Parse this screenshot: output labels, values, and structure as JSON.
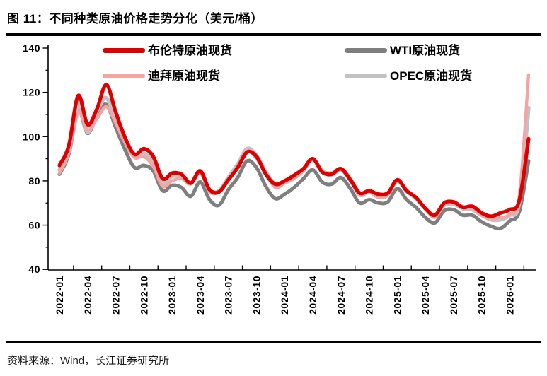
{
  "header": {
    "title": "图 11：不同种类原油价格走势分化（美元/桶）"
  },
  "footer": {
    "source": "资料来源：Wind，长江证券研究所"
  },
  "chart_data": {
    "type": "line",
    "title": "不同种类原油价格走势分化（美元/桶）",
    "xlabel": "",
    "ylabel": "",
    "unit": "美元/桶",
    "ylim": [
      40,
      140
    ],
    "y_ticks": [
      40,
      60,
      80,
      100,
      120,
      140
    ],
    "y_minor_tick_step": 10,
    "grid": "off",
    "legend_position": "top-inside",
    "x_frequency": "monthly",
    "x_start": "2022-01",
    "x_end": "2026-03",
    "x_tick_labels": [
      "2022-01",
      "2022-04",
      "2022-07",
      "2022-10",
      "2023-01",
      "2023-04",
      "2023-07",
      "2023-10",
      "2024-01",
      "2024-04",
      "2024-07",
      "2024-10",
      "2025-01",
      "2025-04",
      "2025-07",
      "2025-10",
      "2026-01"
    ],
    "series": [
      {
        "name": "布伦特原油现货",
        "color": "#DE0000",
        "values": [
          87,
          96,
          118.5,
          105.5,
          112.5,
          123.5,
          111,
          99.5,
          92,
          94.5,
          91,
          81,
          83.5,
          83,
          79,
          84.5,
          76,
          75,
          80.5,
          86,
          93,
          91,
          83,
          78.5,
          80,
          82.5,
          85.5,
          90,
          84,
          83,
          85.5,
          80.5,
          74.5,
          75.5,
          74,
          74.5,
          80.5,
          75.5,
          72.5,
          67.5,
          64.5,
          70,
          70.5,
          68,
          68.5,
          65.5,
          64,
          65.5,
          67,
          71,
          99
        ]
      },
      {
        "name": "WTI原油现货",
        "color": "#7F7F7F",
        "values": [
          83,
          92,
          112,
          101.5,
          109.5,
          114.5,
          104,
          94,
          86,
          87,
          84.5,
          75.5,
          78,
          77,
          73,
          79.5,
          71.5,
          69,
          76,
          81.5,
          89,
          86,
          77.5,
          72,
          74,
          77,
          81,
          85,
          79.5,
          78.5,
          81.5,
          76.5,
          70,
          71.5,
          70,
          70.5,
          76.5,
          71.5,
          68,
          63.5,
          61,
          66.5,
          67,
          64.5,
          64.5,
          61.5,
          59.5,
          58.5,
          62,
          66,
          89
        ]
      },
      {
        "name": "迪拜原油现货",
        "color": "#F5A3A3",
        "values": [
          83.5,
          92.5,
          111,
          103,
          108,
          113.5,
          106,
          97,
          90.5,
          91,
          86.5,
          77.5,
          80,
          81,
          78.5,
          83.5,
          75,
          75,
          80.5,
          86.5,
          93.5,
          90,
          83.5,
          77,
          79,
          81,
          84.5,
          89.5,
          84,
          82.5,
          85,
          80,
          73.5,
          75,
          72.5,
          73.5,
          80.5,
          76,
          72.5,
          67.5,
          63.5,
          69.5,
          70,
          68.5,
          67.5,
          64.5,
          63,
          63.5,
          65,
          73,
          128
        ]
      },
      {
        "name": "OPEC原油现货",
        "color": "#C2C2C2",
        "values": [
          85,
          94,
          114.5,
          102,
          111.5,
          117.5,
          107.5,
          98.5,
          91,
          92.5,
          88.5,
          79,
          82,
          82,
          79,
          84.5,
          76,
          75.5,
          81.5,
          87.5,
          94.5,
          91.5,
          84,
          78.5,
          80,
          82,
          85.5,
          90,
          84.5,
          83.5,
          85.5,
          81,
          74.5,
          75.5,
          73.5,
          74,
          80,
          75.5,
          72,
          67.5,
          64,
          69,
          69.5,
          67.5,
          67,
          64.5,
          62.5,
          62.5,
          64.5,
          70,
          113
        ]
      }
    ]
  }
}
